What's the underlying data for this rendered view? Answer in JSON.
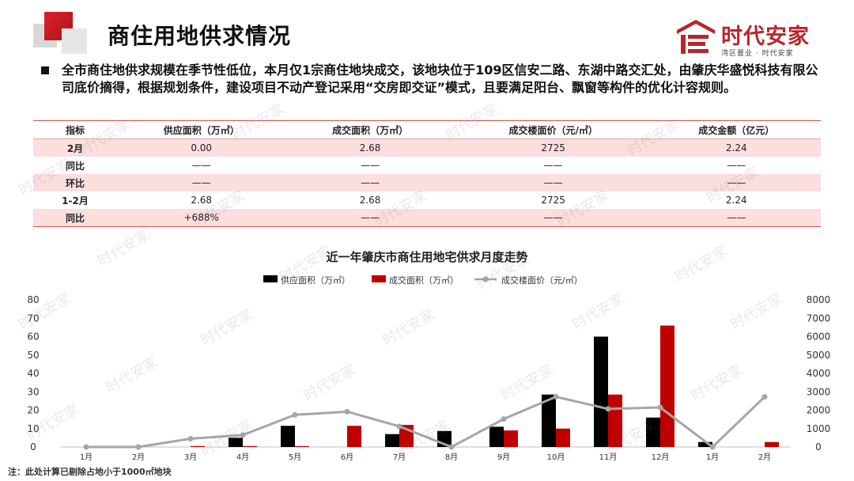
{
  "header": {
    "title": "商住用地供求情况",
    "logo_text": "时代安家",
    "logo_sub": "湾区置业 · 时代安家"
  },
  "summary": "全市商住地供求规模在季节性低位，本月仅1宗商住地块成交，该地块位于109区信安二路、东湖中路交汇处，由肇庆华盛悦科技有限公司底价摘得，根据规划条件，建设项目不动产登记采用“交房即交证”模式，且要满足阳台、飘窗等构件的优化计容规则。",
  "table": {
    "headers": [
      "指标",
      "供应面积（万㎡）",
      "成交面积（万㎡）",
      "成交楼面价（元/㎡）",
      "成交金额（亿元）"
    ],
    "rows": [
      [
        "2月",
        "0.00",
        "2.68",
        "2725",
        "2.24"
      ],
      [
        "同比",
        "——",
        "——",
        "——",
        "——"
      ],
      [
        "环比",
        "——",
        "——",
        "——",
        "——"
      ],
      [
        "1-2月",
        "2.68",
        "2.68",
        "2725",
        "2.24"
      ],
      [
        "同比",
        "+688%",
        "——",
        "——",
        "——"
      ]
    ]
  },
  "watermark": "时代安家",
  "footnote": "注：此处计算已剔除占地小于1000㎡地块",
  "colors": {
    "supply": "#000000",
    "deal": "#c00000",
    "price": "#a6a6a6",
    "accent": "#d9534f"
  },
  "chart_data": {
    "type": "bar",
    "title": "近一年肇庆市商住用地宅供求月度走势",
    "categories": [
      "1月",
      "2月",
      "3月",
      "4月",
      "5月",
      "6月",
      "7月",
      "8月",
      "9月",
      "10月",
      "11月",
      "12月",
      "1月",
      "2月"
    ],
    "series": [
      {
        "name": "供应面积（万㎡）",
        "type": "bar",
        "axis": "left",
        "values": [
          0,
          0,
          0,
          5,
          11.5,
          0,
          7,
          8.7,
          11,
          28.5,
          60,
          16,
          2.7,
          0
        ]
      },
      {
        "name": "成交面积（万㎡）",
        "type": "bar",
        "axis": "left",
        "values": [
          0,
          0,
          0.5,
          0.5,
          0.5,
          11.5,
          12,
          0,
          9,
          10,
          28.5,
          66,
          0,
          2.7
        ]
      },
      {
        "name": "成交楼面价（元/㎡）",
        "type": "line",
        "axis": "right",
        "values": [
          0,
          0,
          450,
          650,
          1750,
          1920,
          1120,
          0,
          1520,
          2730,
          2070,
          2150,
          0,
          2725
        ]
      }
    ],
    "y_left": {
      "min": 0,
      "max": 80,
      "ticks": [
        0,
        10,
        20,
        30,
        40,
        50,
        60,
        70,
        80
      ]
    },
    "y_right": {
      "min": 0,
      "max": 8000,
      "ticks": [
        0,
        1000,
        2000,
        3000,
        4000,
        5000,
        6000,
        7000,
        8000
      ]
    },
    "legend_position": "top-center",
    "grid": false
  }
}
